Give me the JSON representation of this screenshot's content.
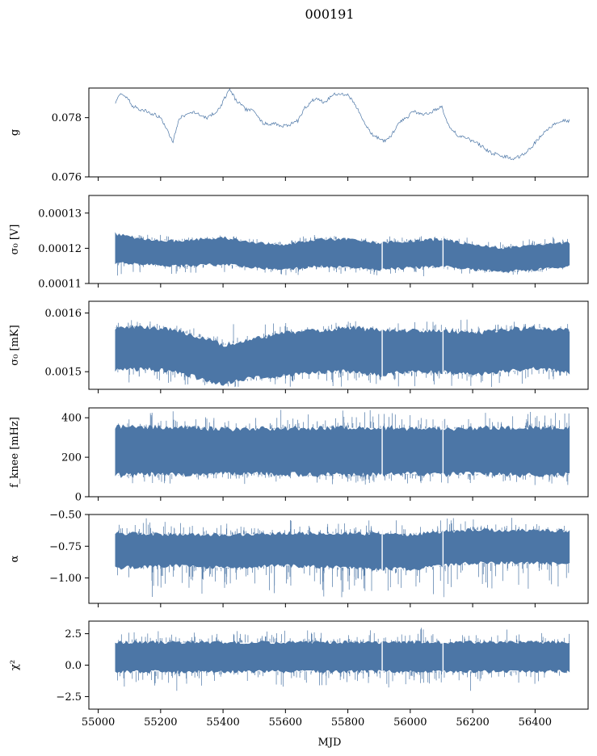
{
  "title": "000191",
  "xlabel": "MJD",
  "colors": {
    "series": "#4c76a6",
    "axis": "#000000"
  },
  "chart_data": [
    {
      "type": "line",
      "ylabel": "g",
      "ylim": [
        0.076,
        0.079
      ],
      "yticks": [
        "0.076",
        "0.078"
      ],
      "ytick_values": [
        0.076,
        0.078
      ],
      "xlim": [
        54970,
        56570
      ],
      "xticks": [
        55000,
        55200,
        55400,
        55600,
        55800,
        56000,
        56200,
        56400
      ],
      "show_xtick_labels": false,
      "noise": 6e-05,
      "clip_to_axes": true,
      "x": [
        55055,
        55070,
        55090,
        55110,
        55130,
        55160,
        55200,
        55240,
        55260,
        55300,
        55350,
        55390,
        55420,
        55440,
        55470,
        55500,
        55530,
        55560,
        55600,
        55640,
        55660,
        55700,
        55720,
        55760,
        55800,
        55830,
        55860,
        55880,
        55920,
        55940,
        55960,
        55990,
        56010,
        56040,
        56070,
        56100,
        56120,
        56150,
        56180,
        56220,
        56260,
        56300,
        56330,
        56350,
        56380,
        56420,
        56450,
        56480,
        56510
      ],
      "values": [
        0.0785,
        0.0788,
        0.0787,
        0.0784,
        0.0783,
        0.0782,
        0.078,
        0.0772,
        0.078,
        0.0782,
        0.078,
        0.0783,
        0.079,
        0.0786,
        0.0783,
        0.0782,
        0.0778,
        0.0778,
        0.0777,
        0.0779,
        0.0783,
        0.0787,
        0.0785,
        0.0788,
        0.0788,
        0.0783,
        0.0777,
        0.0774,
        0.0772,
        0.0774,
        0.0778,
        0.078,
        0.0782,
        0.0781,
        0.0782,
        0.0784,
        0.0778,
        0.0774,
        0.0773,
        0.0771,
        0.0768,
        0.0767,
        0.0766,
        0.0767,
        0.0769,
        0.0774,
        0.0777,
        0.0779,
        0.0779
      ]
    },
    {
      "type": "area",
      "ylabel": "σ₀ [V]",
      "ylim": [
        0.00011,
        0.000135
      ],
      "yticks": [
        "0.00011",
        "0.00012",
        "0.00013"
      ],
      "ytick_values": [
        0.00011,
        0.00012,
        0.00013
      ],
      "xlim": [
        54970,
        56570
      ],
      "xticks": [
        55000,
        55200,
        55400,
        55600,
        55800,
        56000,
        56200,
        56400
      ],
      "show_xtick_labels": false,
      "x": [
        55055,
        55150,
        55250,
        55400,
        55500,
        55600,
        55700,
        55800,
        55900,
        56000,
        56100,
        56200,
        56300,
        56400,
        56510
      ],
      "upper": [
        0.000124,
        0.0001225,
        0.000122,
        0.000123,
        0.0001215,
        0.000121,
        0.0001225,
        0.0001225,
        0.0001215,
        0.000122,
        0.0001225,
        0.000121,
        0.00012,
        0.000121,
        0.0001215
      ],
      "lower": [
        0.000116,
        0.0001155,
        0.000115,
        0.0001155,
        0.0001145,
        0.000114,
        0.000115,
        0.0001145,
        0.000114,
        0.0001145,
        0.000115,
        0.000114,
        0.0001135,
        0.000114,
        0.000115
      ],
      "spike_min": 0.000112,
      "spike_max": 0.000124,
      "gaps": [
        55910,
        56105
      ]
    },
    {
      "type": "area",
      "ylabel": "σ₀ [mK]",
      "ylim": [
        0.00147,
        0.00162
      ],
      "yticks": [
        "0.0015",
        "0.0016"
      ],
      "ytick_values": [
        0.0015,
        0.0016
      ],
      "xlim": [
        54970,
        56570
      ],
      "xticks": [
        55000,
        55200,
        55400,
        55600,
        55800,
        56000,
        56200,
        56400
      ],
      "show_xtick_labels": false,
      "x": [
        55055,
        55150,
        55250,
        55350,
        55400,
        55500,
        55600,
        55700,
        55800,
        55900,
        56000,
        56100,
        56200,
        56300,
        56400,
        56510
      ],
      "upper": [
        0.001575,
        0.001575,
        0.00157,
        0.001555,
        0.001545,
        0.001555,
        0.001565,
        0.00157,
        0.001575,
        0.00157,
        0.00157,
        0.00157,
        0.001565,
        0.00157,
        0.001575,
        0.00157
      ],
      "lower": [
        0.001505,
        0.001505,
        0.0015,
        0.001485,
        0.00148,
        0.00149,
        0.001495,
        0.0015,
        0.0015,
        0.001495,
        0.0015,
        0.0015,
        0.001495,
        0.0015,
        0.001505,
        0.0015
      ],
      "spike_min": 0.00147,
      "spike_max": 0.00159,
      "gaps": [
        55910,
        56105
      ]
    },
    {
      "type": "area",
      "ylabel": "f_knee [mHz]",
      "ylim": [
        0,
        450
      ],
      "yticks": [
        "0",
        "200",
        "400"
      ],
      "ytick_values": [
        0,
        200,
        400
      ],
      "xlim": [
        54970,
        56570
      ],
      "xticks": [
        55000,
        55200,
        55400,
        55600,
        55800,
        56000,
        56200,
        56400
      ],
      "show_xtick_labels": false,
      "x": [
        55055,
        55250,
        55400,
        55600,
        55800,
        56000,
        56200,
        56400,
        56510
      ],
      "upper": [
        350,
        350,
        340,
        345,
        350,
        345,
        345,
        350,
        345
      ],
      "lower": [
        110,
        115,
        120,
        115,
        110,
        115,
        115,
        110,
        115
      ],
      "spike_min": 50,
      "spike_max": 450,
      "gaps": [
        55910,
        56105
      ]
    },
    {
      "type": "area",
      "ylabel": "α",
      "ylim": [
        -1.2,
        -0.5
      ],
      "yticks": [
        "−1.00",
        "−0.75",
        "−0.50"
      ],
      "ytick_values": [
        -1.0,
        -0.75,
        -0.5
      ],
      "xlim": [
        54970,
        56570
      ],
      "xticks": [
        55000,
        55200,
        55400,
        55600,
        55800,
        56000,
        56200,
        56400
      ],
      "show_xtick_labels": false,
      "x": [
        55055,
        55250,
        55400,
        55600,
        55800,
        56000,
        56200,
        56400,
        56510
      ],
      "upper": [
        -0.65,
        -0.66,
        -0.66,
        -0.65,
        -0.65,
        -0.66,
        -0.62,
        -0.63,
        -0.63
      ],
      "lower": [
        -0.92,
        -0.9,
        -0.92,
        -0.9,
        -0.92,
        -0.93,
        -0.88,
        -0.88,
        -0.88
      ],
      "spike_min": -1.2,
      "spike_max": -0.52,
      "gaps": [
        55910,
        56105
      ]
    },
    {
      "type": "area",
      "ylabel": "χ²",
      "ylim": [
        -3.5,
        3.5
      ],
      "yticks": [
        "−2.5",
        "0.0",
        "2.5"
      ],
      "ytick_values": [
        -2.5,
        0,
        2.5
      ],
      "xlim": [
        54970,
        56570
      ],
      "xticks": [
        55000,
        55200,
        55400,
        55600,
        55800,
        56000,
        56200,
        56400
      ],
      "xtick_labels": [
        "55000",
        "55200",
        "55400",
        "55600",
        "55800",
        "56000",
        "56200",
        "56400"
      ],
      "show_xtick_labels": true,
      "x": [
        55055,
        55500,
        56000,
        56510
      ],
      "upper": [
        1.8,
        1.8,
        1.8,
        1.8
      ],
      "lower": [
        -0.5,
        -0.5,
        -0.5,
        -0.5
      ],
      "spike_min": -2.2,
      "spike_max": 3.0,
      "gaps": [
        55910,
        56105
      ]
    }
  ]
}
